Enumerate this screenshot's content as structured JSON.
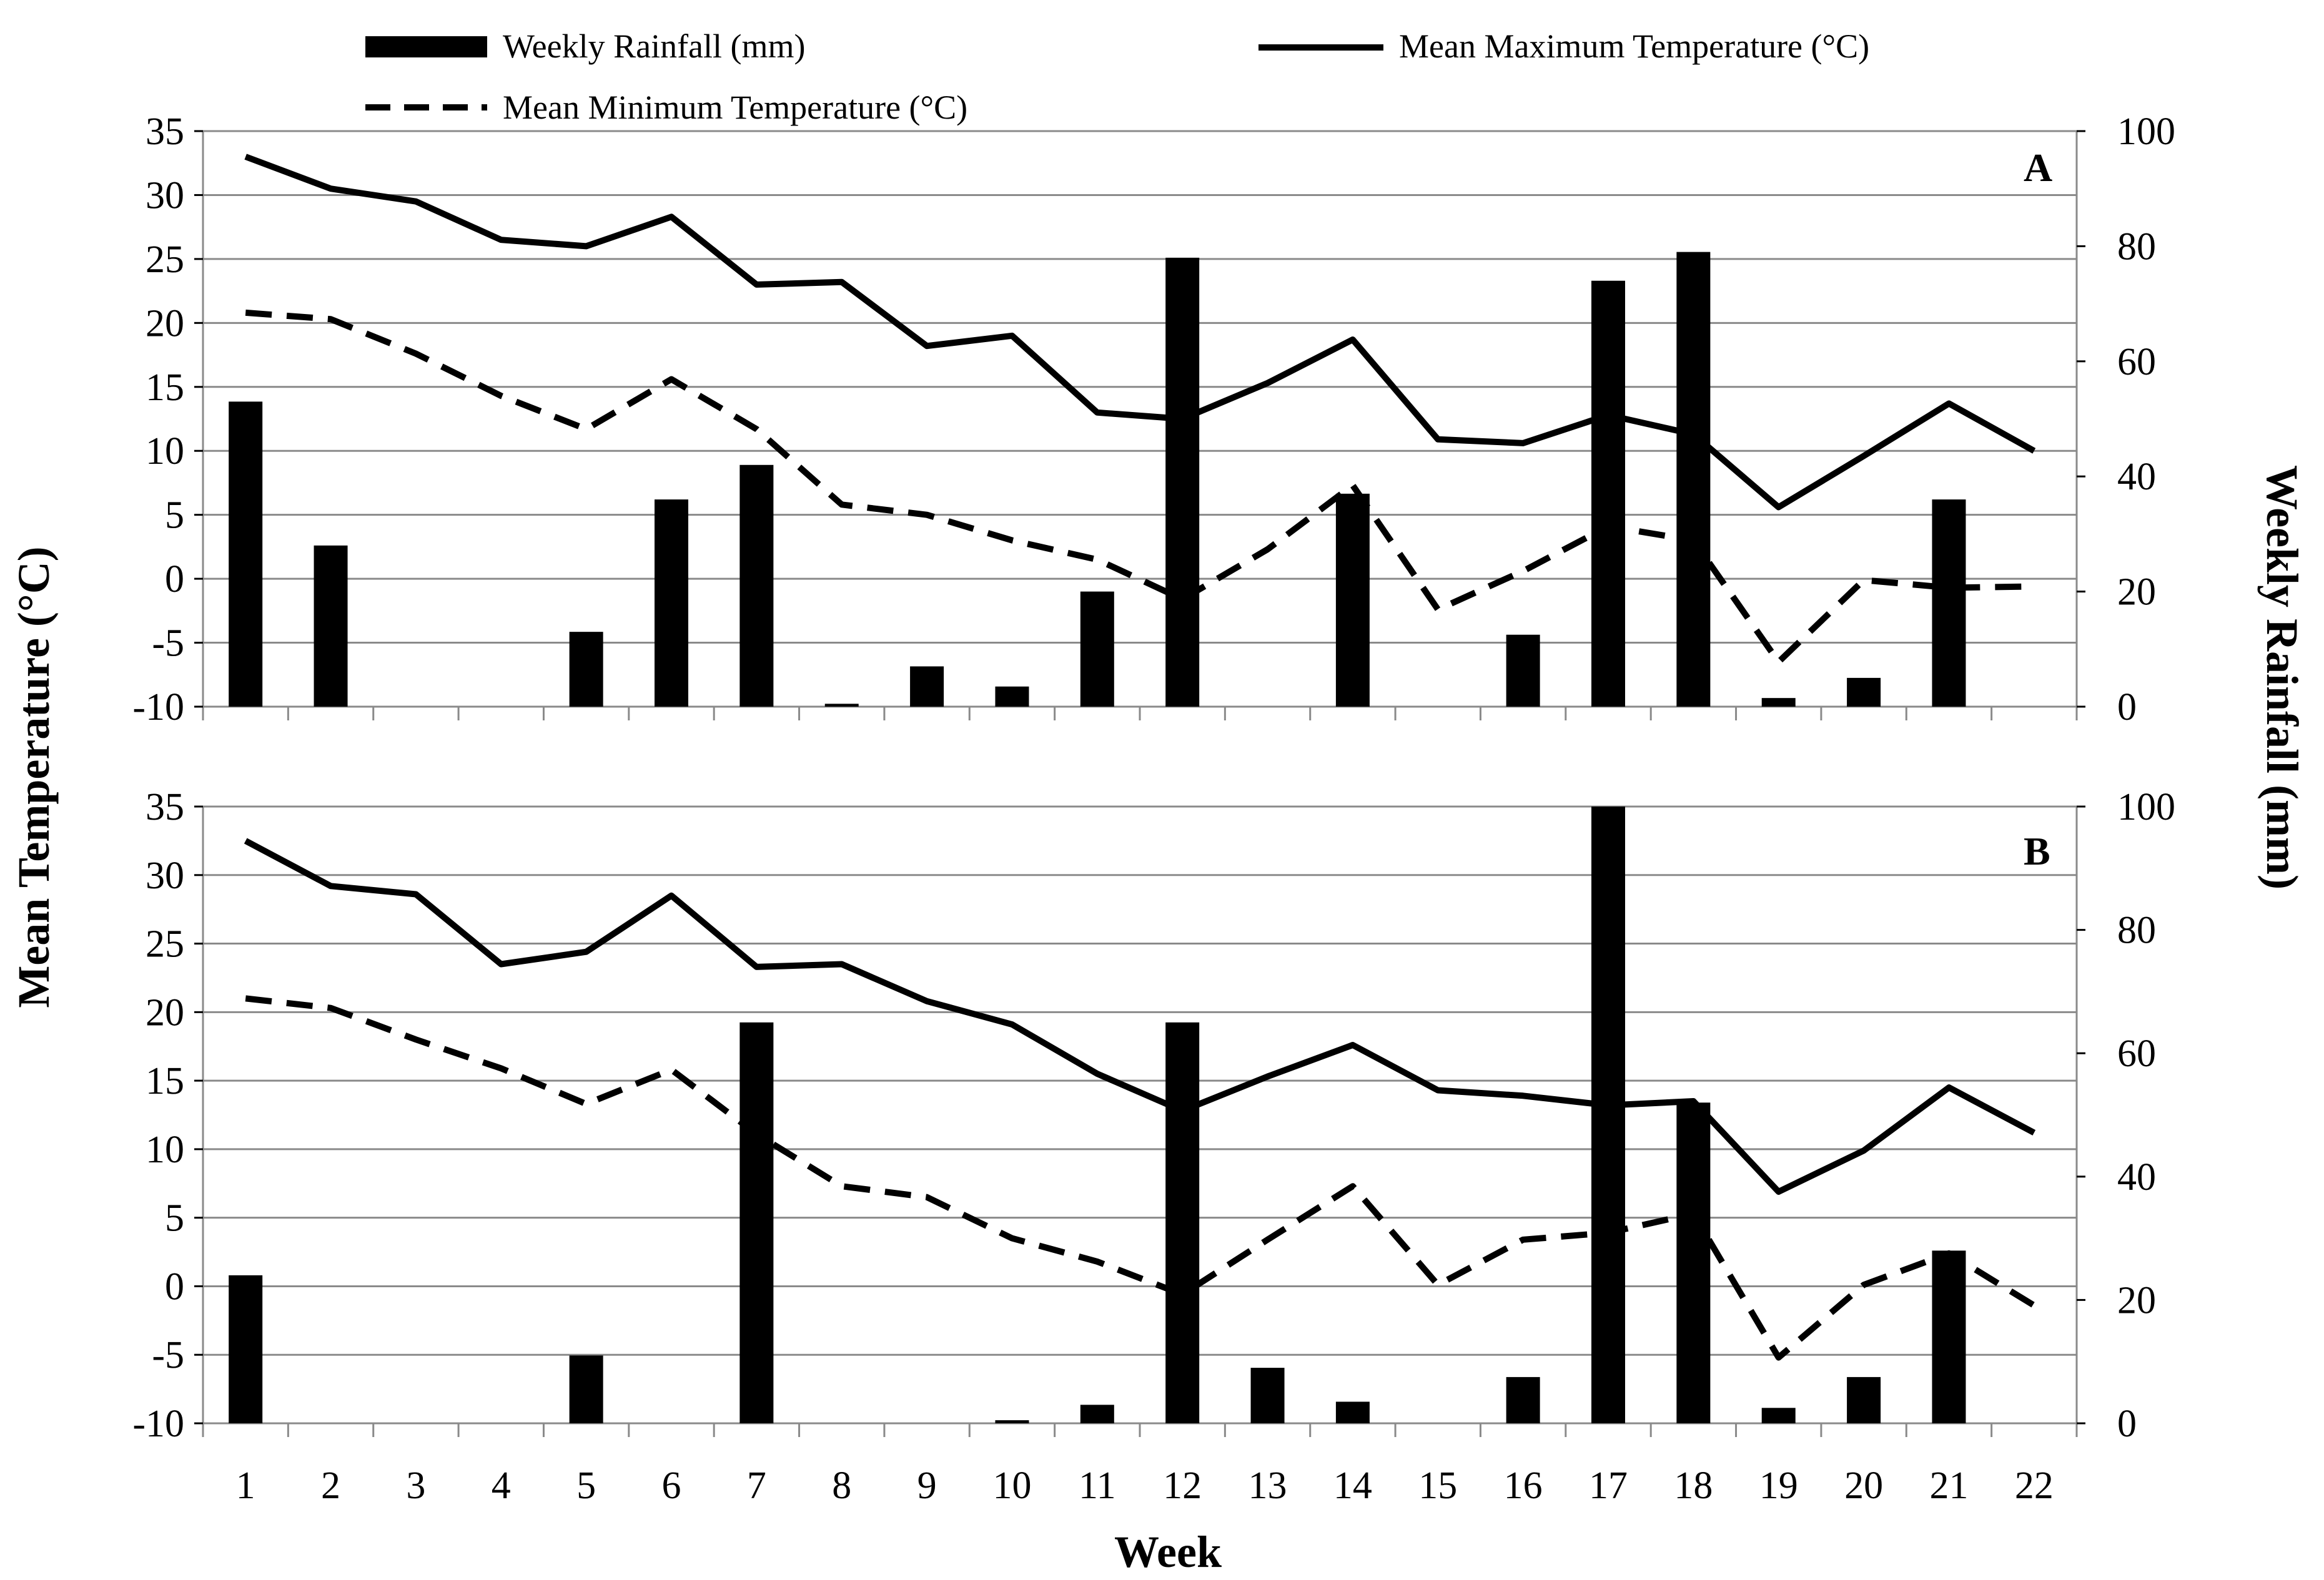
{
  "chart_data": {
    "type": "bar",
    "xlabel": "Week",
    "ylabel_left": "Mean Temperature (°C)",
    "ylabel_right": "Weekly Rainfall (mm)",
    "ylim_left": [
      -10,
      35
    ],
    "ylim_right": [
      0,
      100
    ],
    "left_ticks": [
      "35",
      "30",
      "25",
      "20",
      "15",
      "10",
      "5",
      "0",
      "-5",
      "-10"
    ],
    "right_ticks": [
      "100",
      "80",
      "60",
      "40",
      "20",
      "0"
    ],
    "categories": [
      "1",
      "2",
      "3",
      "4",
      "5",
      "6",
      "7",
      "8",
      "9",
      "10",
      "11",
      "12",
      "13",
      "14",
      "15",
      "16",
      "17",
      "18",
      "19",
      "20",
      "21",
      "22"
    ],
    "legend": {
      "rainfall": "Weekly Rainfall (mm)",
      "max_temp": "Mean Maximum Temperature (°C)",
      "min_temp": "Mean Minimum Temperature (°C)"
    },
    "panels": [
      {
        "label": "A",
        "series": [
          {
            "name": "Weekly Rainfall (mm)",
            "axis": "right",
            "values": [
              53,
              28,
              0,
              0,
              13,
              36,
              42,
              0.5,
              7,
              3.5,
              20,
              78,
              0,
              37,
              0,
              12.5,
              74,
              79,
              1.5,
              5,
              36,
              0
            ]
          },
          {
            "name": "Mean Maximum Temperature (°C)",
            "axis": "left",
            "values": [
              33,
              30.5,
              29.5,
              26.5,
              26,
              28.3,
              23,
              23.2,
              18.2,
              19,
              13,
              12.5,
              15.3,
              18.7,
              10.9,
              10.6,
              12.8,
              11.3,
              5.6,
              9.6,
              13.7,
              10
            ]
          },
          {
            "name": "Mean Minimum Temperature (°C)",
            "axis": "left",
            "values": [
              20.8,
              20.3,
              17.6,
              14.3,
              11.7,
              15.6,
              11.7,
              5.8,
              5,
              3,
              1.5,
              -1.6,
              2.3,
              7.3,
              -2.4,
              0.6,
              4.1,
              3,
              -6.5,
              -0.1,
              -0.7,
              -0.6
            ]
          }
        ]
      },
      {
        "label": "B",
        "series": [
          {
            "name": "Weekly Rainfall (mm)",
            "axis": "right",
            "values": [
              24,
              0,
              0,
              0,
              11,
              0,
              65,
              0,
              0,
              0.5,
              3,
              65,
              9,
              3.5,
              0,
              7.5,
              100,
              52,
              2.5,
              7.5,
              28,
              0
            ]
          },
          {
            "name": "Mean Maximum Temperature (°C)",
            "axis": "left",
            "values": [
              32.5,
              29.2,
              28.6,
              23.5,
              24.4,
              28.5,
              23.3,
              23.5,
              20.8,
              19.1,
              15.5,
              12.8,
              15.3,
              17.6,
              14.3,
              13.9,
              13.2,
              13.5,
              6.9,
              9.9,
              14.5,
              11.2
            ]
          },
          {
            "name": "Mean Minimum Temperature (°C)",
            "axis": "left",
            "values": [
              21,
              20.3,
              18,
              15.9,
              13.3,
              15.8,
              11.1,
              7.3,
              6.5,
              3.5,
              1.8,
              -0.6,
              3.4,
              7.3,
              0.1,
              3.4,
              3.9,
              5.3,
              -5.2,
              0.1,
              2.4,
              -1.4
            ]
          }
        ]
      }
    ]
  }
}
